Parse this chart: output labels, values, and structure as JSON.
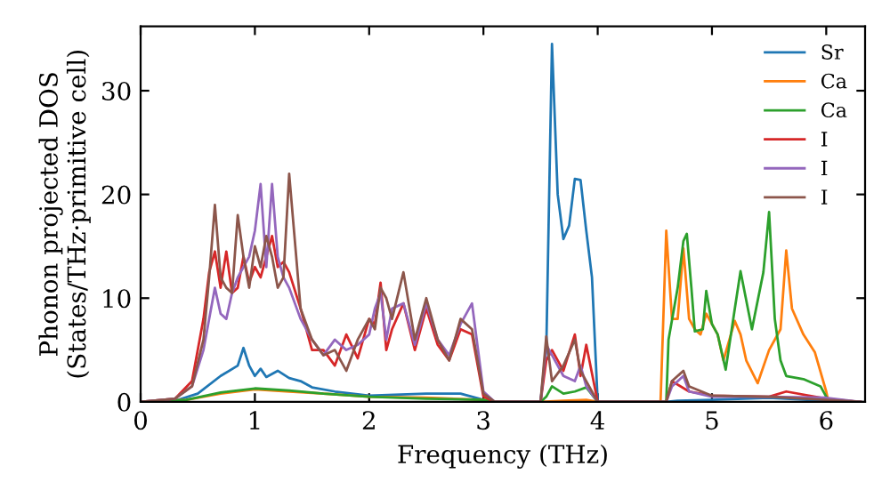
{
  "chart_data": {
    "type": "line",
    "xlabel": "Frequency (THz)",
    "ylabel": "Phonon projected DOS\n(States/THz·primitive cell)",
    "xlim": [
      0,
      6.34
    ],
    "ylim": [
      0,
      36.2
    ],
    "xticks": [
      0,
      1,
      2,
      3,
      4,
      5,
      6
    ],
    "yticks": [
      0,
      10,
      20,
      30
    ],
    "grid": false,
    "legend": "top right",
    "marker": "none",
    "line_style": "solid",
    "series": [
      {
        "name": "Sr",
        "color": "#1f77b4",
        "x": [
          0,
          0.3,
          0.5,
          0.7,
          0.85,
          0.9,
          0.95,
          1.0,
          1.05,
          1.1,
          1.2,
          1.3,
          1.4,
          1.5,
          1.7,
          2.0,
          2.5,
          2.8,
          3.0,
          3.1,
          3.5,
          3.55,
          3.6,
          3.65,
          3.7,
          3.75,
          3.8,
          3.85,
          3.9,
          3.95,
          4.0,
          4.6,
          4.7,
          5.0,
          5.5,
          6.0,
          6.3
        ],
        "values": [
          0,
          0.1,
          0.8,
          2.5,
          3.5,
          5.2,
          3.5,
          2.5,
          3.2,
          2.4,
          3,
          2.3,
          2,
          1.4,
          1,
          0.6,
          0.8,
          0.8,
          0.2,
          0,
          0,
          5,
          34.5,
          20,
          15.7,
          17,
          21.5,
          21.4,
          16.5,
          12,
          0,
          0,
          0.1,
          0.2,
          0.4,
          0.1,
          0
        ]
      },
      {
        "name": "Ca",
        "color": "#ff7f0e",
        "x": [
          0,
          0.4,
          0.7,
          1.0,
          1.3,
          1.6,
          2.0,
          2.5,
          3.0,
          3.1,
          3.5,
          3.7,
          3.9,
          4.0,
          4.55,
          4.6,
          4.65,
          4.7,
          4.75,
          4.8,
          4.85,
          4.9,
          4.95,
          5.0,
          5.05,
          5.1,
          5.2,
          5.25,
          5.3,
          5.4,
          5.5,
          5.6,
          5.65,
          5.7,
          5.8,
          5.9,
          6.0,
          6.02
        ],
        "values": [
          0,
          0.2,
          0.8,
          1.2,
          1.0,
          0.8,
          0.5,
          0.4,
          0.2,
          0,
          0,
          0.1,
          0.2,
          0,
          0,
          16.5,
          8,
          8,
          14.8,
          8,
          7,
          6.5,
          8.5,
          7.5,
          6.5,
          4,
          7.8,
          6.5,
          4,
          1.8,
          5,
          7,
          14.6,
          9,
          6.5,
          4.8,
          1,
          0
        ]
      },
      {
        "name": "Ca",
        "color": "#2ca02c",
        "x": [
          0,
          0.4,
          0.7,
          1.0,
          1.3,
          1.6,
          2.0,
          2.5,
          3.0,
          3.1,
          3.5,
          3.55,
          3.6,
          3.7,
          3.8,
          3.9,
          4.0,
          4.6,
          4.62,
          4.7,
          4.75,
          4.78,
          4.82,
          4.85,
          4.92,
          4.95,
          5.0,
          5.05,
          5.12,
          5.2,
          5.25,
          5.35,
          5.45,
          5.5,
          5.55,
          5.6,
          5.65,
          5.8,
          5.95,
          6.0,
          6.02
        ],
        "values": [
          0,
          0.2,
          0.9,
          1.3,
          1.1,
          0.8,
          0.5,
          0.3,
          0.2,
          0,
          0,
          0.5,
          1.5,
          0.8,
          1.0,
          1.4,
          0,
          0,
          6,
          11,
          15.5,
          16.2,
          11,
          6.8,
          7,
          10.7,
          7.5,
          6.5,
          3.1,
          9,
          12.6,
          7,
          12.5,
          18.3,
          8,
          4,
          2.5,
          2.2,
          1.5,
          0.5,
          0
        ]
      },
      {
        "name": "I",
        "color": "#d62728",
        "x": [
          0,
          0.3,
          0.45,
          0.55,
          0.6,
          0.65,
          0.7,
          0.75,
          0.8,
          0.85,
          0.9,
          0.95,
          1.0,
          1.05,
          1.1,
          1.15,
          1.2,
          1.25,
          1.3,
          1.4,
          1.5,
          1.6,
          1.7,
          1.8,
          1.9,
          2.0,
          2.05,
          2.1,
          2.15,
          2.2,
          2.3,
          2.4,
          2.5,
          2.6,
          2.7,
          2.8,
          2.9,
          3.0,
          3.1,
          3.5,
          3.55,
          3.6,
          3.7,
          3.8,
          3.85,
          3.9,
          4.0,
          4.6,
          4.65,
          4.8,
          5.0,
          5.5,
          5.65,
          6.0,
          6.3
        ],
        "values": [
          0,
          0.3,
          2,
          8,
          12.5,
          14.5,
          11,
          14.5,
          10.5,
          11,
          14,
          11.5,
          13,
          12,
          14,
          16,
          13,
          13.5,
          12.5,
          9,
          5,
          5,
          3.5,
          6.5,
          4.2,
          8,
          7.5,
          11.5,
          5,
          7,
          9.5,
          5,
          9,
          5.5,
          4,
          7,
          6.5,
          0.5,
          0,
          0,
          4,
          5,
          3,
          6.5,
          2.5,
          5.5,
          0,
          0,
          2,
          1,
          0.6,
          0.5,
          1,
          0.3,
          0
        ]
      },
      {
        "name": "I",
        "color": "#9467bd",
        "x": [
          0,
          0.3,
          0.45,
          0.55,
          0.6,
          0.65,
          0.7,
          0.75,
          0.8,
          0.85,
          0.9,
          0.95,
          1.0,
          1.05,
          1.1,
          1.15,
          1.2,
          1.25,
          1.3,
          1.4,
          1.5,
          1.6,
          1.7,
          1.8,
          1.9,
          2.0,
          2.05,
          2.1,
          2.15,
          2.2,
          2.3,
          2.4,
          2.5,
          2.6,
          2.7,
          2.8,
          2.9,
          3.0,
          3.1,
          3.5,
          3.55,
          3.6,
          3.7,
          3.8,
          3.85,
          3.9,
          4.0,
          4.6,
          4.65,
          4.75,
          4.8,
          5.0,
          5.5,
          6.0,
          6.3
        ],
        "values": [
          0,
          0.3,
          1.5,
          5,
          8,
          11,
          8.5,
          8,
          10.5,
          12,
          13,
          14,
          16.5,
          21,
          13,
          21,
          14,
          12,
          11,
          8,
          6,
          4.5,
          6,
          5,
          5.5,
          6.5,
          9,
          10.5,
          6,
          9,
          9.5,
          5.5,
          9.5,
          6,
          4.5,
          7.5,
          9.5,
          1,
          0,
          0,
          5.5,
          4.5,
          2.5,
          2,
          3.5,
          1.5,
          0,
          0,
          1.5,
          2.5,
          1,
          0.5,
          0.5,
          0.4,
          0
        ]
      },
      {
        "name": "I",
        "color": "#8c564b",
        "x": [
          0,
          0.3,
          0.45,
          0.55,
          0.6,
          0.65,
          0.7,
          0.75,
          0.8,
          0.85,
          0.9,
          0.95,
          1.0,
          1.05,
          1.1,
          1.15,
          1.2,
          1.25,
          1.3,
          1.4,
          1.5,
          1.6,
          1.7,
          1.8,
          1.9,
          2.0,
          2.05,
          2.1,
          2.15,
          2.2,
          2.3,
          2.4,
          2.5,
          2.6,
          2.7,
          2.8,
          2.9,
          3.0,
          3.1,
          3.5,
          3.55,
          3.6,
          3.7,
          3.8,
          3.85,
          3.9,
          4.0,
          4.6,
          4.65,
          4.75,
          4.8,
          5.0,
          5.5,
          6.0,
          6.3
        ],
        "values": [
          0,
          0.3,
          1.5,
          6,
          12,
          19,
          12,
          11,
          10.5,
          18,
          14,
          11,
          15,
          13,
          16,
          14,
          11,
          12,
          22,
          9,
          6,
          4.5,
          5,
          3,
          6,
          8,
          7,
          11,
          10,
          8,
          12.5,
          6,
          10,
          6,
          4,
          8,
          7,
          0.8,
          0,
          0,
          6.3,
          2,
          3.5,
          6,
          3,
          2,
          0,
          0,
          2,
          3,
          1.5,
          0.6,
          0.5,
          0.2,
          0
        ]
      }
    ]
  }
}
